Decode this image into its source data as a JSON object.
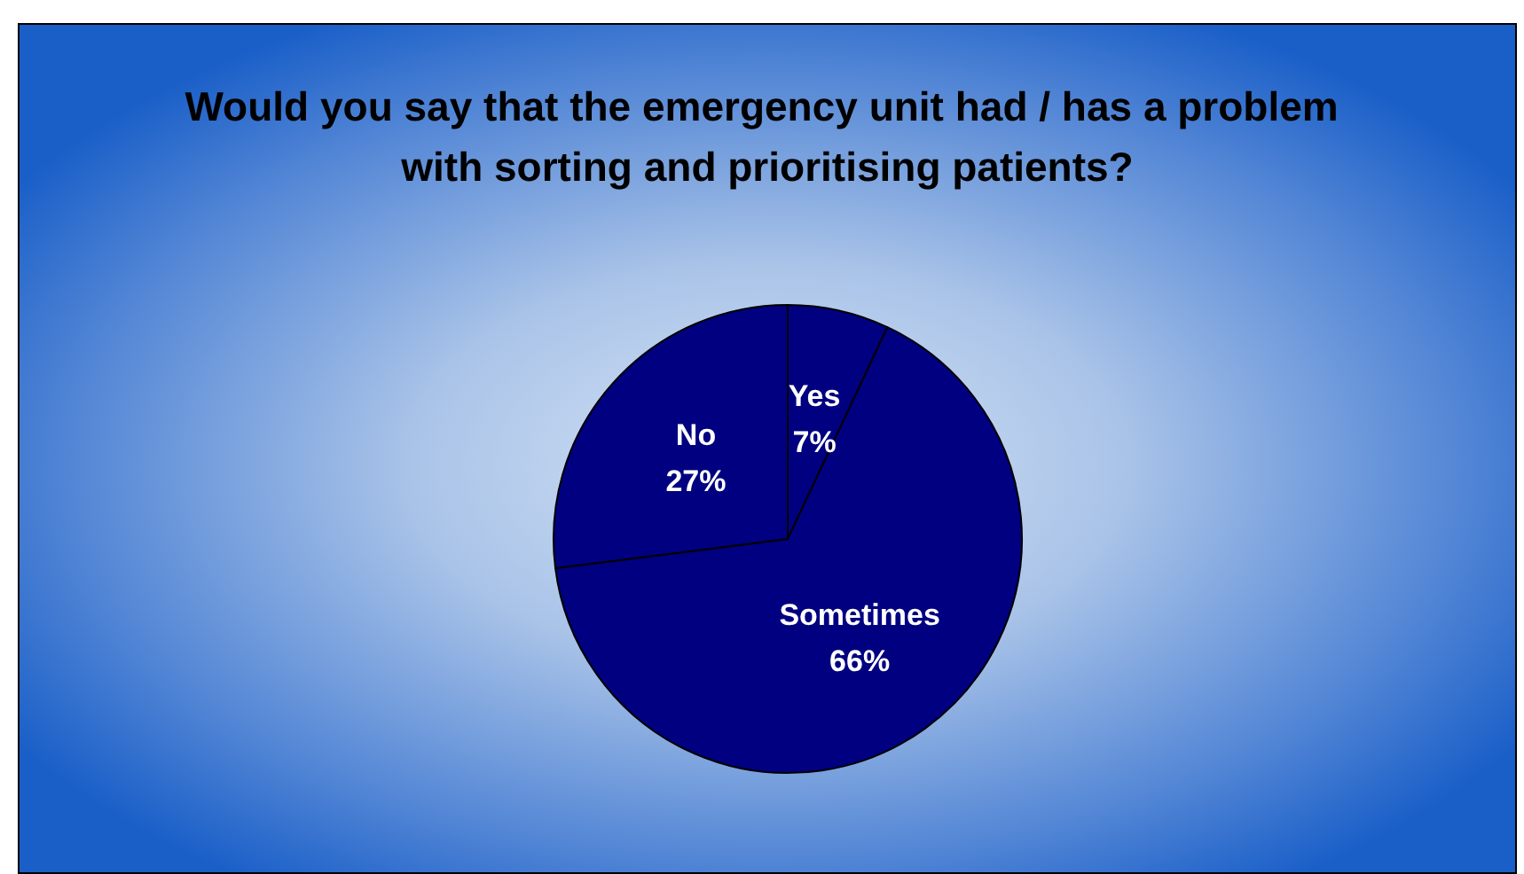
{
  "chart_data": {
    "type": "pie",
    "title": "Would you say that the emergency unit had / has a problem with sorting and prioritising patients?",
    "categories": [
      "Yes",
      "Sometimes",
      "No"
    ],
    "values": [
      7,
      66,
      27
    ],
    "colors": [
      "#000080",
      "#000080",
      "#000080"
    ],
    "value_labels": [
      "7%",
      "66%",
      "27%"
    ],
    "legend": false
  }
}
